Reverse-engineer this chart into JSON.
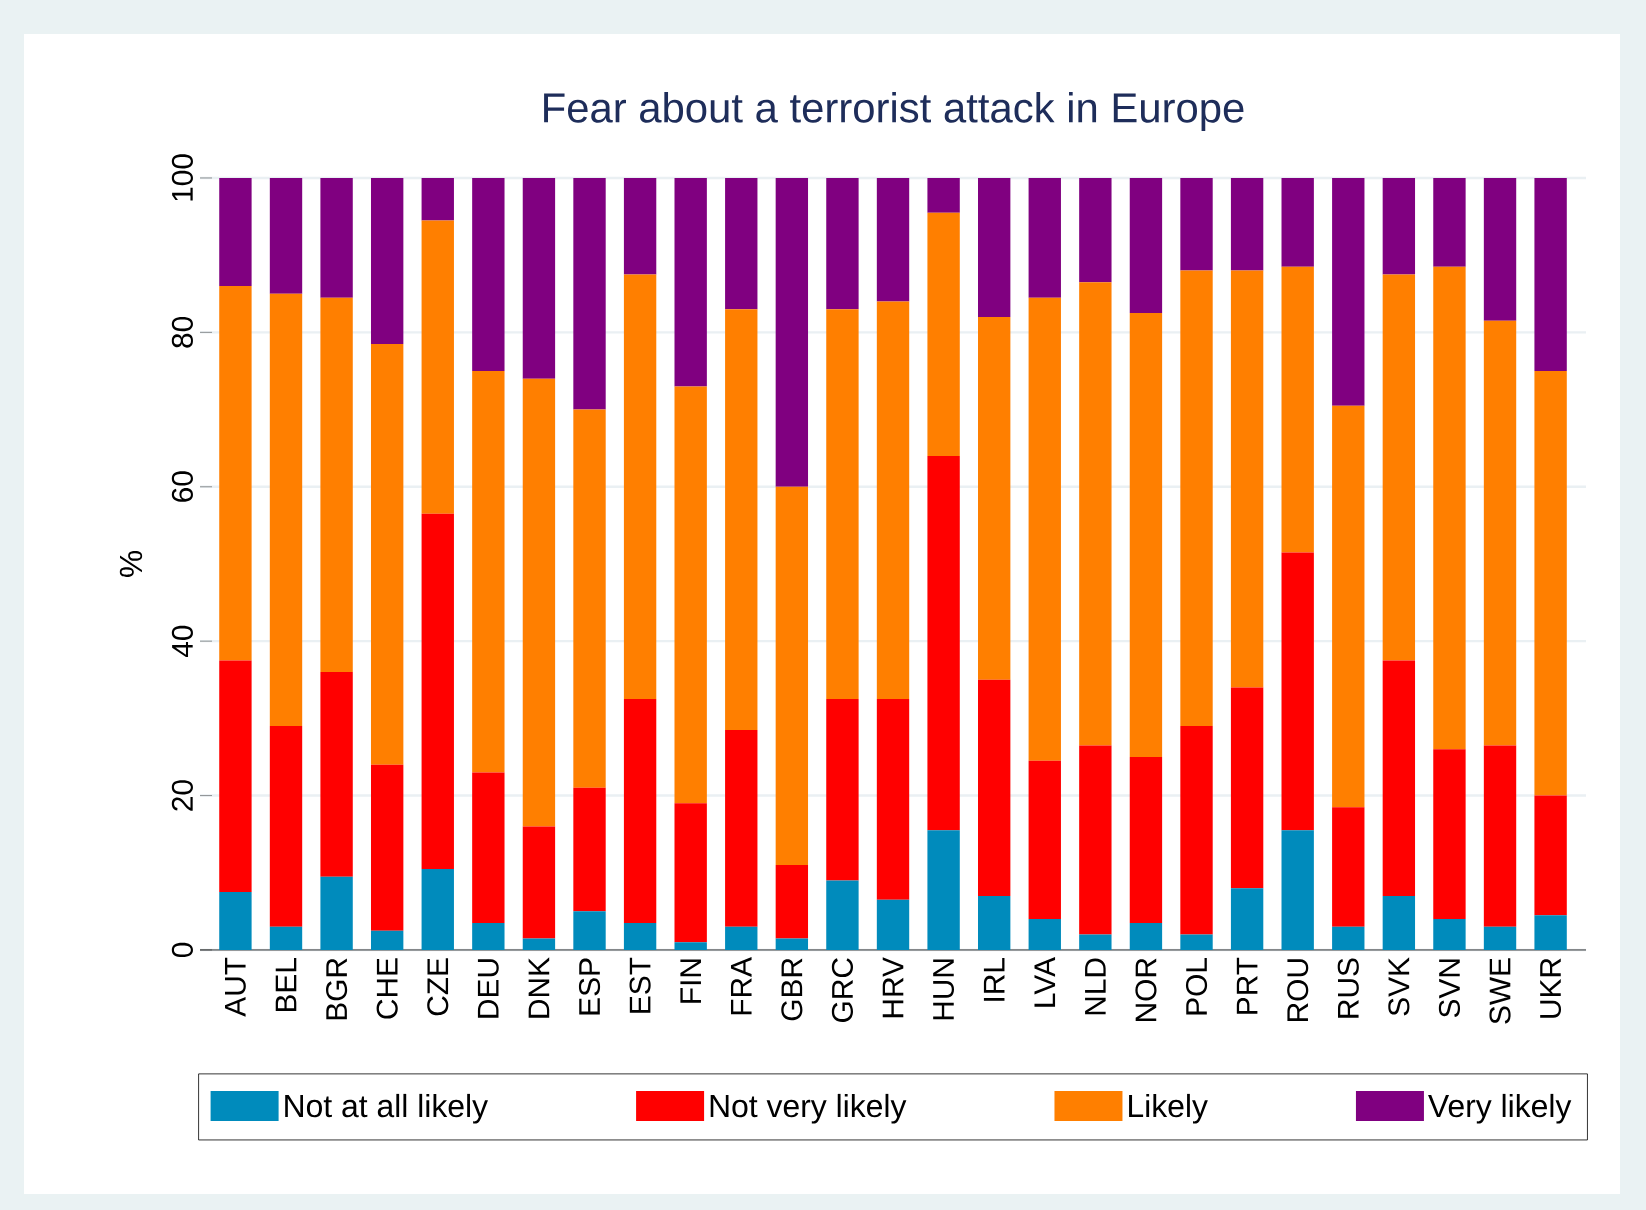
{
  "chart_data": {
    "type": "bar",
    "stacked": true,
    "title": "Fear about a terrorist attack in Europe",
    "ylabel": "%",
    "categories": [
      "AUT",
      "BEL",
      "BGR",
      "CHE",
      "CZE",
      "DEU",
      "DNK",
      "ESP",
      "EST",
      "FIN",
      "FRA",
      "GBR",
      "GRC",
      "HRV",
      "HUN",
      "IRL",
      "LVA",
      "NLD",
      "NOR",
      "POL",
      "PRT",
      "ROU",
      "RUS",
      "SVK",
      "SVN",
      "SWE",
      "UKR"
    ],
    "series": [
      {
        "name": "Not at all likely",
        "color": "#008bbc",
        "values": [
          7.5,
          3,
          9.5,
          2.5,
          10.5,
          3.5,
          1.5,
          5,
          3.5,
          1,
          3,
          1.5,
          9,
          6.5,
          15.5,
          7,
          4,
          2,
          3.5,
          2,
          8,
          15.5,
          3,
          7,
          4,
          3,
          4.5
        ]
      },
      {
        "name": "Not very likely",
        "color": "#ff0000",
        "values": [
          30,
          26,
          26.5,
          21.5,
          46,
          19.5,
          14.5,
          16,
          29,
          18,
          25.5,
          9.5,
          23.5,
          26,
          48.5,
          28,
          20.5,
          24.5,
          21.5,
          27,
          26,
          36,
          15.5,
          30.5,
          22,
          23.5,
          15.5
        ]
      },
      {
        "name": "Likely",
        "color": "#ff7f00",
        "values": [
          48.5,
          56,
          48.5,
          54.5,
          38,
          52,
          58,
          49,
          55,
          54,
          54.5,
          49,
          50.5,
          51.5,
          31.5,
          47,
          60,
          60,
          57.5,
          59,
          54,
          37,
          52,
          50,
          62.5,
          55,
          55
        ]
      },
      {
        "name": "Very likely",
        "color": "#800080",
        "values": [
          14,
          15,
          15.5,
          21.5,
          5.5,
          25,
          26,
          30,
          12.5,
          27,
          17,
          40,
          17,
          16,
          4.5,
          18,
          15.5,
          13.5,
          17.5,
          12,
          12,
          11.5,
          29.5,
          12.5,
          11.5,
          18.5,
          25
        ]
      }
    ],
    "ylim": [
      0,
      100
    ],
    "yticks": [
      0,
      20,
      40,
      60,
      80,
      100
    ],
    "grid": "y",
    "legend": "bottom"
  }
}
